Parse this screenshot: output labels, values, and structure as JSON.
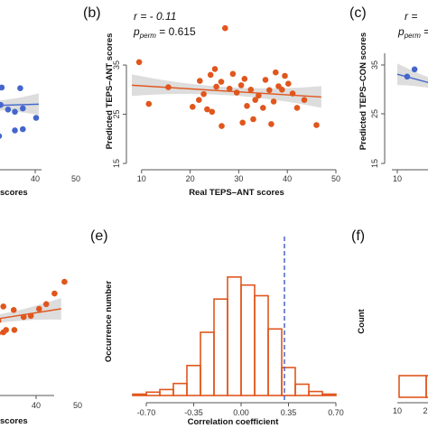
{
  "colors": {
    "blue": "#4466cc",
    "orange": "#e0561d",
    "ci_band": "#d9d9d9",
    "dashed_line": "#4a66c8"
  },
  "panels": {
    "a": {
      "xlabel": "scores",
      "xticks": [
        "40",
        "50"
      ]
    },
    "b": {
      "label": "(b)",
      "stat_r": "r = - 0.11",
      "stat_p_prefix": "p",
      "stat_p_sub": "perm",
      "stat_p_value": " = 0.615",
      "xlabel": "Real TEPS–ANT scores",
      "ylabel": "Predicted TEPS–ANT scores"
    },
    "c": {
      "label": "(c)",
      "stat_r": "r = ",
      "stat_p_prefix": "p",
      "stat_p_sub": "perm",
      "stat_p_value": " =",
      "ylabel": "Predicted TEPS–CON scores",
      "yticks": [
        "35",
        "25",
        "15"
      ],
      "xticks": [
        "10"
      ]
    },
    "d": {
      "xlabel": "scores",
      "xticks": [
        "40",
        "50"
      ]
    },
    "e": {
      "label": "(e)",
      "xlabel": "Correlation coefficient",
      "ylabel": "Occurrence number"
    },
    "f": {
      "label": "(f)",
      "ylabel": "Count",
      "xticks": [
        "10",
        "2"
      ]
    }
  },
  "chart_data": [
    {
      "panel": "b",
      "type": "scatter",
      "xlabel": "Real TEPS–ANT scores",
      "ylabel": "Predicted TEPS–ANT scores",
      "xlim": [
        8,
        50
      ],
      "ylim": [
        15,
        44
      ],
      "xticks": [
        10,
        20,
        30,
        40,
        50
      ],
      "yticks": [
        15,
        25,
        35
      ],
      "points": [
        [
          9.5,
          35.6
        ],
        [
          11.5,
          27.1
        ],
        [
          15.5,
          30.5
        ],
        [
          20.5,
          26.5
        ],
        [
          21.8,
          27.9
        ],
        [
          22.8,
          29.1
        ],
        [
          24.2,
          33.0
        ],
        [
          25.1,
          34.2
        ],
        [
          25.4,
          30.6
        ],
        [
          26.4,
          31.6
        ],
        [
          27.2,
          42.5
        ],
        [
          28.1,
          30.2
        ],
        [
          23.5,
          26.0
        ],
        [
          28.8,
          33.2
        ],
        [
          29.6,
          29.4
        ],
        [
          30.5,
          30.9
        ],
        [
          31.2,
          32.2
        ],
        [
          31.7,
          26.7
        ],
        [
          32.5,
          30.0
        ],
        [
          33.4,
          27.9
        ],
        [
          34.1,
          28.8
        ],
        [
          35.0,
          26.3
        ],
        [
          35.5,
          32.0
        ],
        [
          36.3,
          29.9
        ],
        [
          37.2,
          27.6
        ],
        [
          37.6,
          33.5
        ],
        [
          38.2,
          30.7
        ],
        [
          38.9,
          30.0
        ],
        [
          39.5,
          32.8
        ],
        [
          40.2,
          31.2
        ],
        [
          41.1,
          29.2
        ],
        [
          42.0,
          26.3
        ],
        [
          43.5,
          27.9
        ],
        [
          46.0,
          22.8
        ],
        [
          26.5,
          22.6
        ],
        [
          24.5,
          25.5
        ],
        [
          33.0,
          24.0
        ],
        [
          30.8,
          23.3
        ],
        [
          22.0,
          31.8
        ],
        [
          36.7,
          23.0
        ]
      ],
      "fit_line": [
        [
          8,
          30.9
        ],
        [
          47,
          28.5
        ]
      ],
      "ci_band": true,
      "stat_r": -0.11,
      "stat_p_perm": 0.615
    },
    {
      "panel": "e",
      "type": "bar",
      "xlabel": "Correlation coefficient",
      "ylabel": "Occurrence number",
      "xticks": [
        -0.7,
        -0.35,
        0,
        0.35,
        0.7
      ],
      "xtick_labels": [
        "-0.70",
        "-0.35",
        "0.00",
        "0.35",
        "0.70"
      ],
      "bin_width": 0.1,
      "bins": [
        {
          "start": -0.8,
          "value": 2
        },
        {
          "start": -0.7,
          "value": 5
        },
        {
          "start": -0.6,
          "value": 9
        },
        {
          "start": -0.5,
          "value": 18
        },
        {
          "start": -0.4,
          "value": 45
        },
        {
          "start": -0.3,
          "value": 95
        },
        {
          "start": -0.2,
          "value": 145
        },
        {
          "start": -0.1,
          "value": 178
        },
        {
          "start": 0.0,
          "value": 166
        },
        {
          "start": 0.1,
          "value": 150
        },
        {
          "start": 0.2,
          "value": 100
        },
        {
          "start": 0.3,
          "value": 42
        },
        {
          "start": 0.4,
          "value": 17
        },
        {
          "start": 0.5,
          "value": 6
        },
        {
          "start": 0.6,
          "value": 2
        }
      ],
      "ylim": [
        0,
        190
      ],
      "reference_line": 0.32
    },
    {
      "panel": "a",
      "type": "scatter",
      "partial": true,
      "xlim": [
        20,
        50
      ],
      "ylim": [
        15,
        44
      ],
      "xticks": [
        40,
        50
      ],
      "points": [
        [
          24.0,
          36.0
        ],
        [
          25.5,
          34.2
        ],
        [
          27.5,
          37.0
        ],
        [
          30.0,
          32.5
        ],
        [
          33.0,
          33.0
        ],
        [
          36.0,
          35.0
        ],
        [
          24.5,
          30.0
        ],
        [
          27.0,
          28.8
        ],
        [
          29.5,
          30.4
        ],
        [
          31.0,
          29.3
        ],
        [
          33.5,
          28.7
        ],
        [
          34.3,
          30.0
        ],
        [
          35.8,
          30.4
        ],
        [
          37.2,
          29.2
        ],
        [
          38.5,
          28.6
        ],
        [
          40.0,
          29.5
        ],
        [
          39.5,
          34.8
        ],
        [
          29.0,
          26.5
        ],
        [
          31.5,
          25.8
        ],
        [
          33.0,
          23.0
        ],
        [
          35.5,
          22.2
        ],
        [
          38.5,
          23.7
        ],
        [
          40.0,
          24.0
        ],
        [
          42.5,
          27.0
        ]
      ],
      "fit_line": [
        [
          20,
          29.6
        ],
        [
          43,
          30.6
        ]
      ],
      "ci_band": true
    },
    {
      "panel": "c",
      "type": "scatter",
      "partial": true,
      "xlim": [
        8,
        30
      ],
      "ylim": [
        12,
        38
      ],
      "xticks": [
        10
      ],
      "points": [
        [
          10,
          34.5
        ],
        [
          11.5,
          36.0
        ]
      ],
      "fit_line": [
        [
          8,
          35.0
        ],
        [
          30,
          29.0
        ]
      ],
      "ci_band": true
    },
    {
      "panel": "d",
      "type": "scatter",
      "partial": true,
      "xlim": [
        20,
        50
      ],
      "ylim": [
        0,
        10
      ],
      "xticks": [
        40,
        50
      ],
      "points": [
        [
          22.5,
          6.2
        ],
        [
          26.5,
          7.2
        ],
        [
          29.0,
          6.4
        ],
        [
          30.5,
          6.9
        ],
        [
          32.0,
          6.5
        ],
        [
          33.5,
          7.2
        ],
        [
          35.2,
          7.1
        ],
        [
          36.5,
          6.2
        ],
        [
          38.4,
          5.9
        ],
        [
          40.2,
          5.3
        ],
        [
          41.5,
          5.4
        ],
        [
          43.0,
          6.0
        ],
        [
          44.3,
          6.4
        ],
        [
          45.8,
          7.3
        ],
        [
          47.6,
          8.3
        ],
        [
          23.8,
          5.2
        ],
        [
          26.2,
          4.9
        ],
        [
          27.5,
          5.4
        ],
        [
          29.2,
          5.1
        ],
        [
          30.5,
          5.4
        ],
        [
          32.7,
          4.8
        ],
        [
          34.3,
          5.3
        ],
        [
          35.6,
          5.0
        ],
        [
          37.0,
          4.2
        ],
        [
          38.5,
          4.2
        ],
        [
          33.4,
          4.4
        ],
        [
          36.5,
          4.0
        ],
        [
          23.8,
          3.0
        ],
        [
          28.4,
          3.7
        ],
        [
          30.8,
          3.5
        ],
        [
          35.5,
          3.9
        ],
        [
          22.2,
          2.7
        ]
      ],
      "fit_line": [
        [
          20,
          4.0
        ],
        [
          47,
          6.0
        ]
      ],
      "ci_band": true
    },
    {
      "panel": "f",
      "type": "bar",
      "partial": true,
      "xticks": [
        "10",
        "2"
      ],
      "bars": [
        {
          "start": 0.0,
          "value": 1
        },
        {
          "start": 1.0,
          "value": 1
        }
      ]
    }
  ]
}
